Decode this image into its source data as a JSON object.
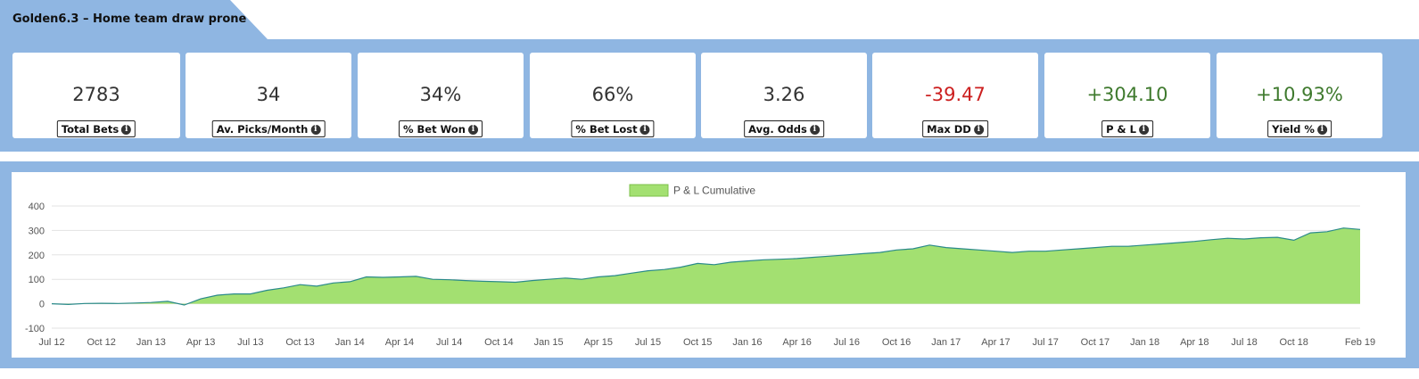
{
  "header": {
    "title": "Golden6.3 – Home team draw prone"
  },
  "stats": [
    {
      "value": "2783",
      "label": "Total Bets",
      "color": "#333333"
    },
    {
      "value": "34",
      "label": "Av. Picks/Month",
      "color": "#333333"
    },
    {
      "value": "34%",
      "label": "% Bet Won",
      "color": "#333333"
    },
    {
      "value": "66%",
      "label": "% Bet Lost",
      "color": "#333333"
    },
    {
      "value": "3.26",
      "label": "Avg. Odds",
      "color": "#333333"
    },
    {
      "value": "-39.47",
      "label": "Max DD",
      "color": "#cc1f1f"
    },
    {
      "value": "+304.10",
      "label": "P & L",
      "color": "#3f7a2e"
    },
    {
      "value": "+10.93%",
      "label": "Yield %",
      "color": "#3f7a2e"
    }
  ],
  "chart_data": {
    "type": "area",
    "title": "",
    "xlabel": "",
    "ylabel": "",
    "legend": {
      "position": "top-center",
      "entries": [
        "P & L Cumulative"
      ]
    },
    "grid": true,
    "ylim": [
      -100,
      400
    ],
    "yticks": [
      "400",
      "300",
      "200",
      "100",
      "0",
      "-100"
    ],
    "xticks": [
      "Jul 12",
      "Oct 12",
      "Jan 13",
      "Apr 13",
      "Jul 13",
      "Oct 13",
      "Jan 14",
      "Apr 14",
      "Jul 14",
      "Oct 14",
      "Jan 15",
      "Apr 15",
      "Jul 15",
      "Oct 15",
      "Jan 16",
      "Apr 16",
      "Jul 16",
      "Oct 16",
      "Jan 17",
      "Apr 17",
      "Jul 17",
      "Oct 17",
      "Jan 18",
      "Apr 18",
      "Jul 18",
      "Oct 18",
      "Feb 19"
    ],
    "colors": {
      "fill": "#a3e071",
      "line": "#2a8a8a"
    },
    "series": [
      {
        "name": "P & L Cumulative",
        "x": [
          "Jul 12",
          "Aug 12",
          "Sep 12",
          "Oct 12",
          "Nov 12",
          "Dec 12",
          "Jan 13",
          "Feb 13",
          "Mar 13",
          "Apr 13",
          "May 13",
          "Jun 13",
          "Jul 13",
          "Aug 13",
          "Sep 13",
          "Oct 13",
          "Nov 13",
          "Dec 13",
          "Jan 14",
          "Feb 14",
          "Mar 14",
          "Apr 14",
          "May 14",
          "Jun 14",
          "Jul 14",
          "Aug 14",
          "Sep 14",
          "Oct 14",
          "Nov 14",
          "Dec 14",
          "Jan 15",
          "Feb 15",
          "Mar 15",
          "Apr 15",
          "May 15",
          "Jun 15",
          "Jul 15",
          "Aug 15",
          "Sep 15",
          "Oct 15",
          "Nov 15",
          "Dec 15",
          "Jan 16",
          "Feb 16",
          "Mar 16",
          "Apr 16",
          "May 16",
          "Jun 16",
          "Jul 16",
          "Aug 16",
          "Sep 16",
          "Oct 16",
          "Nov 16",
          "Dec 16",
          "Jan 17",
          "Feb 17",
          "Mar 17",
          "Apr 17",
          "May 17",
          "Jun 17",
          "Jul 17",
          "Aug 17",
          "Sep 17",
          "Oct 17",
          "Nov 17",
          "Dec 17",
          "Jan 18",
          "Feb 18",
          "Mar 18",
          "Apr 18",
          "May 18",
          "Jun 18",
          "Jul 18",
          "Aug 18",
          "Sep 18",
          "Oct 18",
          "Nov 18",
          "Dec 18",
          "Jan 19",
          "Feb 19"
        ],
        "values": [
          0,
          -3,
          1,
          2,
          1,
          3,
          5,
          10,
          -5,
          20,
          35,
          40,
          40,
          55,
          65,
          78,
          72,
          85,
          90,
          110,
          108,
          110,
          112,
          100,
          98,
          95,
          92,
          90,
          88,
          95,
          100,
          105,
          100,
          110,
          115,
          125,
          135,
          140,
          150,
          165,
          160,
          170,
          175,
          180,
          182,
          185,
          190,
          195,
          200,
          205,
          210,
          220,
          225,
          240,
          230,
          225,
          220,
          215,
          210,
          215,
          215,
          220,
          225,
          230,
          235,
          235,
          240,
          245,
          250,
          255,
          262,
          268,
          265,
          270,
          272,
          260,
          290,
          295,
          310,
          304
        ]
      }
    ]
  }
}
